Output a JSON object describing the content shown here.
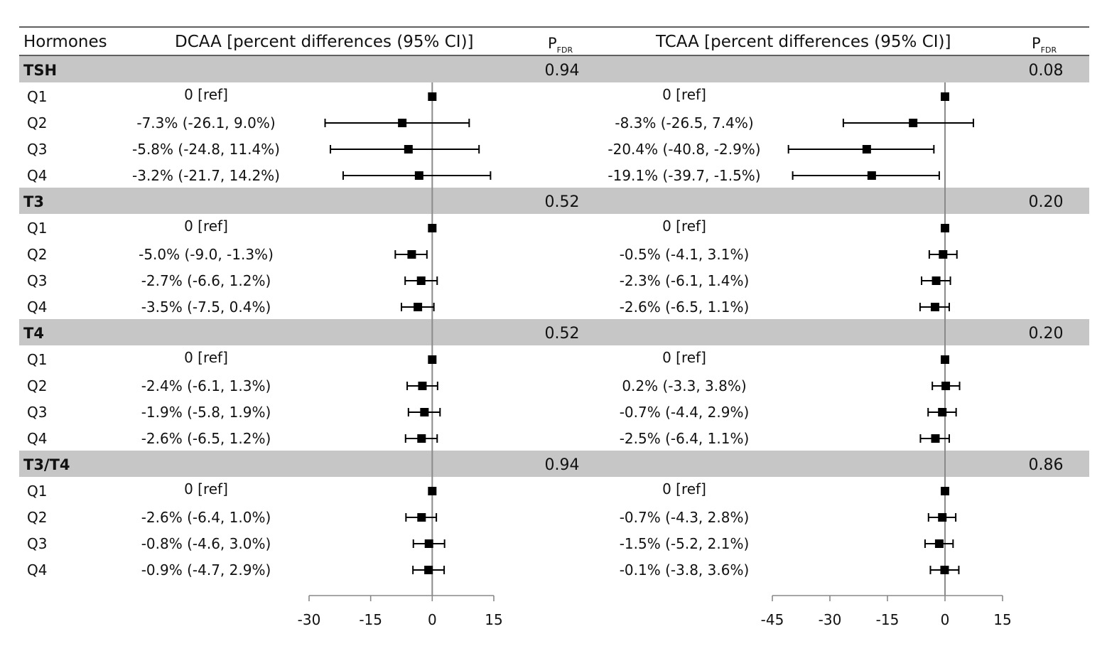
{
  "header": {
    "col_hormones": "Hormones",
    "col_dcaa": "DCAA [percent differences (95% CI)]",
    "col_tcaa": "TCAA [percent differences (95% CI)]",
    "p_letter": "P",
    "p_sub": "FDR"
  },
  "chart_data": {
    "type": "forest",
    "title": "",
    "panels": [
      {
        "name": "DCAA",
        "xlim": [
          -30,
          15
        ],
        "ticks": [
          -30,
          -15,
          0,
          15
        ],
        "reference_line": 0
      },
      {
        "name": "TCAA",
        "xlim": [
          -45,
          15
        ],
        "ticks": [
          -45,
          -30,
          -15,
          0,
          15
        ],
        "reference_line": 0
      }
    ],
    "groups": [
      {
        "name": "TSH",
        "p_fdr": [
          "0.94",
          "0.08"
        ],
        "rows": [
          {
            "label": "Q1",
            "dcaa": {
              "text": "0 [ref]",
              "est": 0,
              "lo": 0,
              "hi": 0
            },
            "tcaa": {
              "text": "0 [ref]",
              "est": 0,
              "lo": 0,
              "hi": 0
            }
          },
          {
            "label": "Q2",
            "dcaa": {
              "text": "-7.3% (-26.1, 9.0%)",
              "est": -7.3,
              "lo": -26.1,
              "hi": 9.0
            },
            "tcaa": {
              "text": "-8.3% (-26.5, 7.4%)",
              "est": -8.3,
              "lo": -26.5,
              "hi": 7.4
            }
          },
          {
            "label": "Q3",
            "dcaa": {
              "text": "-5.8% (-24.8, 11.4%)",
              "est": -5.8,
              "lo": -24.8,
              "hi": 11.4
            },
            "tcaa": {
              "text": "-20.4% (-40.8, -2.9%)",
              "est": -20.4,
              "lo": -40.8,
              "hi": -2.9
            }
          },
          {
            "label": "Q4",
            "dcaa": {
              "text": "-3.2% (-21.7, 14.2%)",
              "est": -3.2,
              "lo": -21.7,
              "hi": 14.2
            },
            "tcaa": {
              "text": "-19.1% (-39.7, -1.5%)",
              "est": -19.1,
              "lo": -39.7,
              "hi": -1.5
            }
          }
        ]
      },
      {
        "name": "T3",
        "p_fdr": [
          "0.52",
          "0.20"
        ],
        "rows": [
          {
            "label": "Q1",
            "dcaa": {
              "text": "0 [ref]",
              "est": 0,
              "lo": 0,
              "hi": 0
            },
            "tcaa": {
              "text": "0 [ref]",
              "est": 0,
              "lo": 0,
              "hi": 0
            }
          },
          {
            "label": "Q2",
            "dcaa": {
              "text": "-5.0% (-9.0, -1.3%)",
              "est": -5.0,
              "lo": -9.0,
              "hi": -1.3
            },
            "tcaa": {
              "text": "-0.5% (-4.1, 3.1%)",
              "est": -0.5,
              "lo": -4.1,
              "hi": 3.1
            }
          },
          {
            "label": "Q3",
            "dcaa": {
              "text": "-2.7% (-6.6, 1.2%)",
              "est": -2.7,
              "lo": -6.6,
              "hi": 1.2
            },
            "tcaa": {
              "text": "-2.3% (-6.1, 1.4%)",
              "est": -2.3,
              "lo": -6.1,
              "hi": 1.4
            }
          },
          {
            "label": "Q4",
            "dcaa": {
              "text": "-3.5% (-7.5, 0.4%)",
              "est": -3.5,
              "lo": -7.5,
              "hi": 0.4
            },
            "tcaa": {
              "text": "-2.6% (-6.5, 1.1%)",
              "est": -2.6,
              "lo": -6.5,
              "hi": 1.1
            }
          }
        ]
      },
      {
        "name": "T4",
        "p_fdr": [
          "0.52",
          "0.20"
        ],
        "rows": [
          {
            "label": "Q1",
            "dcaa": {
              "text": "0 [ref]",
              "est": 0,
              "lo": 0,
              "hi": 0
            },
            "tcaa": {
              "text": "0 [ref]",
              "est": 0,
              "lo": 0,
              "hi": 0
            }
          },
          {
            "label": "Q2",
            "dcaa": {
              "text": "-2.4% (-6.1, 1.3%)",
              "est": -2.4,
              "lo": -6.1,
              "hi": 1.3
            },
            "tcaa": {
              "text": "0.2% (-3.3, 3.8%)",
              "est": 0.2,
              "lo": -3.3,
              "hi": 3.8
            }
          },
          {
            "label": "Q3",
            "dcaa": {
              "text": "-1.9% (-5.8, 1.9%)",
              "est": -1.9,
              "lo": -5.8,
              "hi": 1.9
            },
            "tcaa": {
              "text": "-0.7% (-4.4, 2.9%)",
              "est": -0.7,
              "lo": -4.4,
              "hi": 2.9
            }
          },
          {
            "label": "Q4",
            "dcaa": {
              "text": "-2.6% (-6.5, 1.2%)",
              "est": -2.6,
              "lo": -6.5,
              "hi": 1.2
            },
            "tcaa": {
              "text": "-2.5% (-6.4, 1.1%)",
              "est": -2.5,
              "lo": -6.4,
              "hi": 1.1
            }
          }
        ]
      },
      {
        "name": "T3/T4",
        "p_fdr": [
          "0.94",
          "0.86"
        ],
        "rows": [
          {
            "label": "Q1",
            "dcaa": {
              "text": "0 [ref]",
              "est": 0,
              "lo": 0,
              "hi": 0
            },
            "tcaa": {
              "text": "0 [ref]",
              "est": 0,
              "lo": 0,
              "hi": 0
            }
          },
          {
            "label": "Q2",
            "dcaa": {
              "text": "-2.6% (-6.4, 1.0%)",
              "est": -2.6,
              "lo": -6.4,
              "hi": 1.0
            },
            "tcaa": {
              "text": "-0.7% (-4.3, 2.8%)",
              "est": -0.7,
              "lo": -4.3,
              "hi": 2.8
            }
          },
          {
            "label": "Q3",
            "dcaa": {
              "text": "-0.8% (-4.6, 3.0%)",
              "est": -0.8,
              "lo": -4.6,
              "hi": 3.0
            },
            "tcaa": {
              "text": "-1.5% (-5.2, 2.1%)",
              "est": -1.5,
              "lo": -5.2,
              "hi": 2.1
            }
          },
          {
            "label": "Q4",
            "dcaa": {
              "text": "-0.9% (-4.7, 2.9%)",
              "est": -0.9,
              "lo": -4.7,
              "hi": 2.9
            },
            "tcaa": {
              "text": "-0.1% (-3.8, 3.6%)",
              "est": -0.1,
              "lo": -3.8,
              "hi": 3.6
            }
          }
        ]
      }
    ]
  }
}
